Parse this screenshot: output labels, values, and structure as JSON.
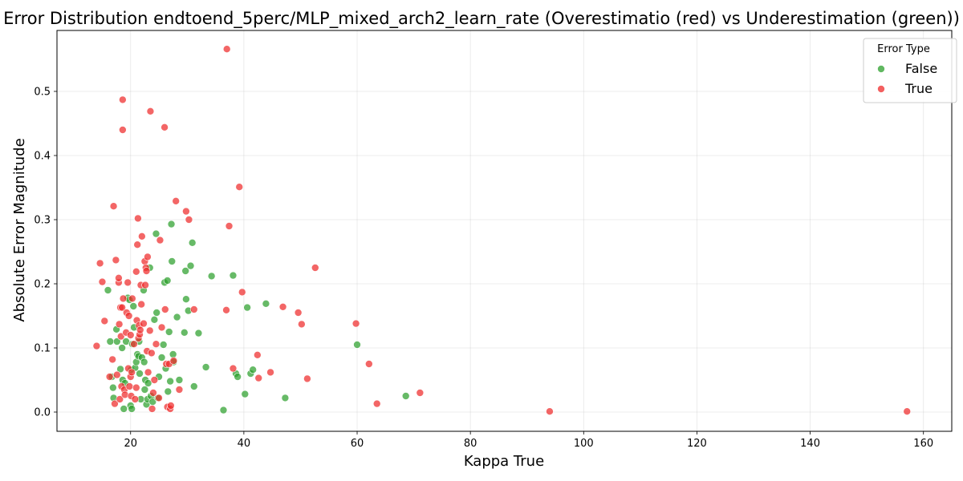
{
  "chart_data": {
    "type": "scatter",
    "title": "Error Distribution endtoend_5perc/MLP_mixed_arch2_learn_rate (Overestimatio (red) vs Underestimation (green))",
    "xlabel": "Kappa True",
    "ylabel": "Absolute Error Magnitude",
    "xlim": [
      7,
      165
    ],
    "ylim": [
      -0.03,
      0.595
    ],
    "xticks": [
      20,
      40,
      60,
      80,
      100,
      120,
      140,
      160
    ],
    "yticks": [
      0.0,
      0.1,
      0.2,
      0.3,
      0.4,
      0.5
    ],
    "xtick_labels": [
      "20",
      "40",
      "60",
      "80",
      "100",
      "120",
      "140",
      "160"
    ],
    "ytick_labels": [
      "0.0",
      "0.1",
      "0.2",
      "0.3",
      "0.4",
      "0.5"
    ],
    "grid": true,
    "legend": {
      "title": "Error Type",
      "placement": "top-right",
      "entries": [
        {
          "label": "False",
          "color": "#2ca02c"
        },
        {
          "label": "True",
          "color": "#ef2b2b"
        }
      ]
    },
    "series": [
      {
        "name": "False",
        "color": "#2ca02c",
        "points": [
          [
            16.0,
            0.19
          ],
          [
            16.4,
            0.11
          ],
          [
            16.7,
            0.055
          ],
          [
            16.9,
            0.038
          ],
          [
            17.0,
            0.022
          ],
          [
            17.5,
            0.129
          ],
          [
            17.6,
            0.11
          ],
          [
            18.2,
            0.067
          ],
          [
            18.5,
            0.1
          ],
          [
            18.6,
            0.05
          ],
          [
            18.8,
            0.005
          ],
          [
            19.0,
            0.045
          ],
          [
            19.2,
            0.11
          ],
          [
            19.5,
            0.178
          ],
          [
            19.8,
            0.175
          ],
          [
            20.0,
            0.01
          ],
          [
            20.2,
            0.005
          ],
          [
            20.1,
            0.066
          ],
          [
            20.3,
            0.106
          ],
          [
            20.5,
            0.165
          ],
          [
            20.6,
            0.132
          ],
          [
            20.8,
            0.069
          ],
          [
            21.0,
            0.078
          ],
          [
            21.2,
            0.09
          ],
          [
            21.4,
            0.087
          ],
          [
            21.5,
            0.11
          ],
          [
            21.6,
            0.06
          ],
          [
            21.8,
            0.02
          ],
          [
            22.0,
            0.085
          ],
          [
            22.3,
            0.19
          ],
          [
            22.4,
            0.078
          ],
          [
            22.6,
            0.05
          ],
          [
            22.5,
            0.035
          ],
          [
            22.8,
            0.012
          ],
          [
            23.0,
            0.02
          ],
          [
            23.1,
            0.045
          ],
          [
            23.4,
            0.225
          ],
          [
            23.6,
            0.025
          ],
          [
            23.9,
            0.016
          ],
          [
            24.2,
            0.144
          ],
          [
            24.5,
            0.278
          ],
          [
            24.6,
            0.155
          ],
          [
            24.8,
            0.022
          ],
          [
            25.0,
            0.055
          ],
          [
            25.5,
            0.085
          ],
          [
            25.8,
            0.105
          ],
          [
            26.0,
            0.202
          ],
          [
            26.2,
            0.068
          ],
          [
            26.5,
            0.205
          ],
          [
            26.6,
            0.032
          ],
          [
            26.8,
            0.125
          ],
          [
            27.0,
            0.048
          ],
          [
            27.2,
            0.293
          ],
          [
            27.3,
            0.235
          ],
          [
            27.5,
            0.09
          ],
          [
            27.6,
            0.078
          ],
          [
            28.2,
            0.148
          ],
          [
            28.6,
            0.05
          ],
          [
            29.5,
            0.124
          ],
          [
            29.7,
            0.22
          ],
          [
            29.8,
            0.176
          ],
          [
            30.2,
            0.158
          ],
          [
            30.6,
            0.228
          ],
          [
            30.9,
            0.264
          ],
          [
            31.2,
            0.04
          ],
          [
            32.0,
            0.123
          ],
          [
            33.3,
            0.07
          ],
          [
            34.3,
            0.212
          ],
          [
            36.4,
            0.003
          ],
          [
            38.1,
            0.213
          ],
          [
            38.6,
            0.06
          ],
          [
            38.9,
            0.055
          ],
          [
            40.2,
            0.028
          ],
          [
            40.6,
            0.163
          ],
          [
            41.2,
            0.06
          ],
          [
            41.6,
            0.066
          ],
          [
            43.9,
            0.169
          ],
          [
            47.3,
            0.022
          ],
          [
            60.0,
            0.105
          ],
          [
            68.6,
            0.025
          ]
        ]
      },
      {
        "name": "True",
        "color": "#ef2b2b",
        "points": [
          [
            14.0,
            0.103
          ],
          [
            14.6,
            0.232
          ],
          [
            15.0,
            0.203
          ],
          [
            15.4,
            0.142
          ],
          [
            16.3,
            0.055
          ],
          [
            16.8,
            0.082
          ],
          [
            17.0,
            0.321
          ],
          [
            17.2,
            0.013
          ],
          [
            17.4,
            0.237
          ],
          [
            17.6,
            0.058
          ],
          [
            17.9,
            0.202
          ],
          [
            17.9,
            0.209
          ],
          [
            18.0,
            0.137
          ],
          [
            18.1,
            0.02
          ],
          [
            18.2,
            0.163
          ],
          [
            18.3,
            0.118
          ],
          [
            18.4,
            0.04
          ],
          [
            18.5,
            0.163
          ],
          [
            18.6,
            0.487
          ],
          [
            18.6,
            0.44
          ],
          [
            18.7,
            0.177
          ],
          [
            18.9,
            0.035
          ],
          [
            19.0,
            0.027
          ],
          [
            19.2,
            0.124
          ],
          [
            19.3,
            0.155
          ],
          [
            19.5,
            0.202
          ],
          [
            19.6,
            0.068
          ],
          [
            19.7,
            0.15
          ],
          [
            19.8,
            0.04
          ],
          [
            20.0,
            0.12
          ],
          [
            20.0,
            0.055
          ],
          [
            20.1,
            0.025
          ],
          [
            20.2,
            0.062
          ],
          [
            20.3,
            0.177
          ],
          [
            20.6,
            0.106
          ],
          [
            20.8,
            0.02
          ],
          [
            21.0,
            0.219
          ],
          [
            21.0,
            0.038
          ],
          [
            21.1,
            0.143
          ],
          [
            21.2,
            0.261
          ],
          [
            21.3,
            0.302
          ],
          [
            21.4,
            0.115
          ],
          [
            21.5,
            0.135
          ],
          [
            21.6,
            0.121
          ],
          [
            21.7,
            0.128
          ],
          [
            21.8,
            0.198
          ],
          [
            21.9,
            0.168
          ],
          [
            22.0,
            0.274
          ],
          [
            22.3,
            0.138
          ],
          [
            22.5,
            0.235
          ],
          [
            22.6,
            0.198
          ],
          [
            22.7,
            0.225
          ],
          [
            22.8,
            0.22
          ],
          [
            22.9,
            0.095
          ],
          [
            23.0,
            0.242
          ],
          [
            23.1,
            0.062
          ],
          [
            23.4,
            0.127
          ],
          [
            23.5,
            0.469
          ],
          [
            23.7,
            0.092
          ],
          [
            23.8,
            0.005
          ],
          [
            24.0,
            0.03
          ],
          [
            24.2,
            0.05
          ],
          [
            24.5,
            0.106
          ],
          [
            25.0,
            0.022
          ],
          [
            25.2,
            0.268
          ],
          [
            25.5,
            0.132
          ],
          [
            26.0,
            0.444
          ],
          [
            26.1,
            0.16
          ],
          [
            26.3,
            0.075
          ],
          [
            26.5,
            0.008
          ],
          [
            26.8,
            0.075
          ],
          [
            27.0,
            0.005
          ],
          [
            27.1,
            0.01
          ],
          [
            27.6,
            0.08
          ],
          [
            28.0,
            0.329
          ],
          [
            28.6,
            0.035
          ],
          [
            29.8,
            0.313
          ],
          [
            30.3,
            0.3
          ],
          [
            31.2,
            0.16
          ],
          [
            36.9,
            0.159
          ],
          [
            37.0,
            0.566
          ],
          [
            37.4,
            0.29
          ],
          [
            38.1,
            0.068
          ],
          [
            39.2,
            0.351
          ],
          [
            39.7,
            0.187
          ],
          [
            42.4,
            0.089
          ],
          [
            42.6,
            0.053
          ],
          [
            44.7,
            0.062
          ],
          [
            46.9,
            0.164
          ],
          [
            49.6,
            0.155
          ],
          [
            50.2,
            0.137
          ],
          [
            51.2,
            0.052
          ],
          [
            52.6,
            0.225
          ],
          [
            59.8,
            0.138
          ],
          [
            62.1,
            0.075
          ],
          [
            63.5,
            0.013
          ],
          [
            71.1,
            0.03
          ],
          [
            94.0,
            0.001
          ],
          [
            157.1,
            0.001
          ]
        ]
      }
    ]
  }
}
